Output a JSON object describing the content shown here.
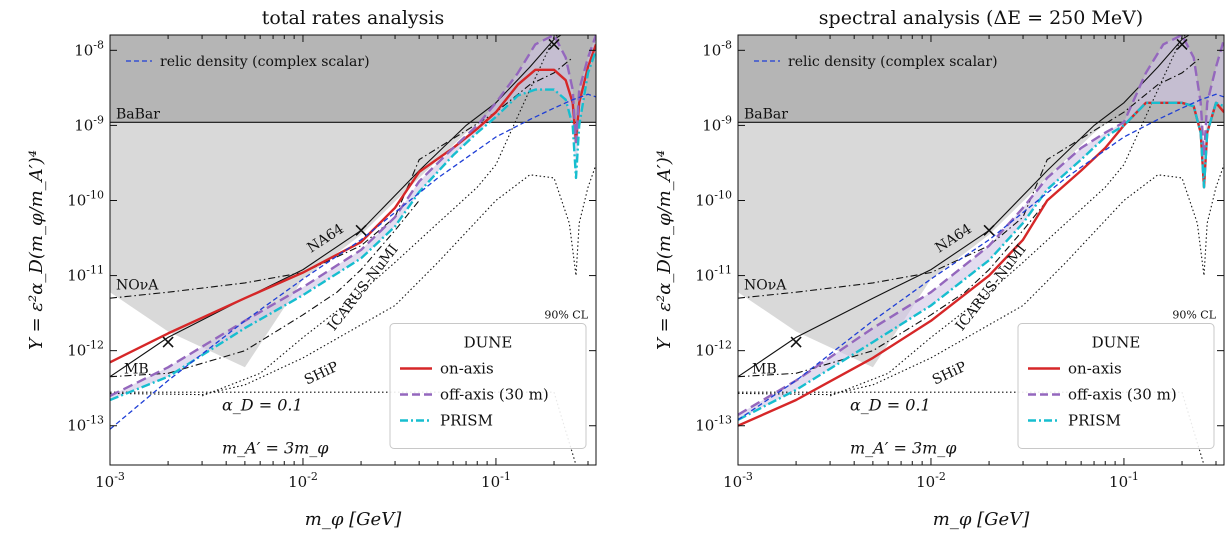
{
  "chart_data": [
    {
      "type": "line",
      "title": "total rates analysis",
      "xlabel": "m_φ [GeV]",
      "ylabel": "Y = ε²α_D(m_φ/m_A′)⁴",
      "xscale": "log",
      "yscale": "log",
      "xlim": [
        0.001,
        0.33
      ],
      "ylim": [
        3e-14,
        1.6e-08
      ],
      "x_ticks": [
        {
          "v": 0.001,
          "m": "10",
          "e": "-3"
        },
        {
          "v": 0.01,
          "m": "10",
          "e": "-2"
        },
        {
          "v": 0.1,
          "m": "10",
          "e": "-1"
        }
      ],
      "y_ticks": [
        {
          "v": 1e-13,
          "m": "10",
          "e": "-13"
        },
        {
          "v": 1e-12,
          "m": "10",
          "e": "-12"
        },
        {
          "v": 1e-11,
          "m": "10",
          "e": "-11"
        },
        {
          "v": 1e-10,
          "m": "10",
          "e": "-10"
        },
        {
          "v": 1e-09,
          "m": "10",
          "e": "-9"
        },
        {
          "v": 1e-08,
          "m": "10",
          "e": "-8"
        }
      ],
      "colors": {
        "excluded": "#b5b5b5",
        "on_axis": "#d62728",
        "off_axis": "#9467bd",
        "prism": "#17becf",
        "relic": "#1f3fd6",
        "band": "#d0c4e4"
      },
      "legend": {
        "position": "lower right",
        "title": "DUNE",
        "entries": [
          {
            "label": "on-axis",
            "style": "solid",
            "color": "#d62728"
          },
          {
            "label": "off-axis (30 m)",
            "style": "dashed",
            "color": "#9467bd"
          },
          {
            "label": "PRISM",
            "style": "dashdot",
            "color": "#17becf"
          }
        ]
      },
      "cl_label": "90% CL",
      "relic_label": "relic density (complex scalar)",
      "params": [
        "α_D = 0.1",
        "m_A′ = 3m_φ"
      ],
      "experiment_labels": [
        "BaBar",
        "NA64",
        "NOνA",
        "MB",
        "SHiP",
        "ICARUS-NuMI"
      ],
      "babar_limit": 1.1e-09,
      "series": [
        {
          "name": "on-axis",
          "x": [
            0.001,
            0.002,
            0.005,
            0.01,
            0.02,
            0.03,
            0.04,
            0.06,
            0.08,
            0.1,
            0.13,
            0.16,
            0.2,
            0.23,
            0.25,
            0.26,
            0.27,
            0.3,
            0.33
          ],
          "y": [
            7e-13,
            1.7e-12,
            5e-12,
            1.1e-11,
            2.8e-11,
            8e-11,
            2.4e-10,
            5e-10,
            9e-10,
            1.5e-09,
            3.5e-09,
            5.5e-09,
            5.5e-09,
            4e-09,
            2e-09,
            6e-10,
            2e-09,
            6e-09,
            1.2e-08
          ]
        },
        {
          "name": "off-axis (30 m)",
          "x": [
            0.001,
            0.002,
            0.005,
            0.01,
            0.02,
            0.03,
            0.04,
            0.06,
            0.08,
            0.1,
            0.13,
            0.16,
            0.2,
            0.23,
            0.25,
            0.26,
            0.27,
            0.3,
            0.33
          ],
          "y": [
            2.5e-13,
            6e-13,
            2.5e-12,
            7e-12,
            2.2e-11,
            6e-11,
            1.8e-10,
            5e-10,
            1e-09,
            2e-09,
            5e-09,
            1.2e-08,
            1.6e-08,
            8e-09,
            3e-09,
            6e-10,
            3e-09,
            8e-09,
            1.6e-08
          ]
        },
        {
          "name": "PRISM",
          "x": [
            0.001,
            0.002,
            0.005,
            0.01,
            0.02,
            0.03,
            0.04,
            0.06,
            0.08,
            0.1,
            0.13,
            0.16,
            0.2,
            0.23,
            0.25,
            0.26,
            0.27,
            0.3,
            0.33
          ],
          "y": [
            2.2e-13,
            4.5e-13,
            2e-12,
            5.5e-12,
            1.7e-11,
            4.5e-11,
            1.3e-10,
            4e-10,
            8e-10,
            1.3e-09,
            2.5e-09,
            3e-09,
            3e-09,
            2.2e-09,
            1e-09,
            2e-10,
            1e-09,
            5e-09,
            1e-08
          ]
        },
        {
          "name": "relic density (complex scalar)",
          "x": [
            0.001,
            0.002,
            0.005,
            0.01,
            0.02,
            0.05,
            0.1,
            0.15,
            0.2,
            0.25,
            0.3,
            0.33
          ],
          "y": [
            9e-14,
            4e-13,
            2.5e-12,
            9e-12,
            3e-11,
            2e-10,
            7e-10,
            1.2e-09,
            1.7e-09,
            2.2e-09,
            2.6e-09,
            2.4e-09
          ]
        }
      ]
    },
    {
      "type": "line",
      "title": "spectral analysis (ΔE = 250 MeV)",
      "xlabel": "m_φ [GeV]",
      "ylabel": "Y = ε²α_D(m_φ/m_A′)⁴",
      "xscale": "log",
      "yscale": "log",
      "xlim": [
        0.001,
        0.33
      ],
      "ylim": [
        3e-14,
        1.6e-08
      ],
      "x_ticks": [
        {
          "v": 0.001,
          "m": "10",
          "e": "-3"
        },
        {
          "v": 0.01,
          "m": "10",
          "e": "-2"
        },
        {
          "v": 0.1,
          "m": "10",
          "e": "-1"
        }
      ],
      "y_ticks": [
        {
          "v": 1e-13,
          "m": "10",
          "e": "-13"
        },
        {
          "v": 1e-12,
          "m": "10",
          "e": "-12"
        },
        {
          "v": 1e-11,
          "m": "10",
          "e": "-11"
        },
        {
          "v": 1e-10,
          "m": "10",
          "e": "-10"
        },
        {
          "v": 1e-09,
          "m": "10",
          "e": "-9"
        },
        {
          "v": 1e-08,
          "m": "10",
          "e": "-8"
        }
      ],
      "colors": {
        "excluded": "#b5b5b5",
        "on_axis": "#d62728",
        "off_axis": "#9467bd",
        "prism": "#17becf",
        "relic": "#1f3fd6",
        "band": "#d0c4e4"
      },
      "legend": {
        "position": "lower right",
        "title": "DUNE",
        "entries": [
          {
            "label": "on-axis",
            "style": "solid",
            "color": "#d62728"
          },
          {
            "label": "off-axis (30 m)",
            "style": "dashed",
            "color": "#9467bd"
          },
          {
            "label": "PRISM",
            "style": "dashdot",
            "color": "#17becf"
          }
        ]
      },
      "cl_label": "90% CL",
      "relic_label": "relic density (complex scalar)",
      "params": [
        "α_D = 0.1",
        "m_A′ = 3m_φ"
      ],
      "experiment_labels": [
        "BaBar",
        "NA64",
        "NOνA",
        "MB",
        "SHiP",
        "ICARUS-NuMI"
      ],
      "babar_limit": 1.1e-09,
      "series": [
        {
          "name": "on-axis",
          "x": [
            0.001,
            0.002,
            0.005,
            0.01,
            0.02,
            0.03,
            0.04,
            0.06,
            0.08,
            0.1,
            0.13,
            0.16,
            0.2,
            0.23,
            0.25,
            0.26,
            0.27,
            0.3,
            0.33
          ],
          "y": [
            1e-13,
            2.2e-13,
            8e-13,
            2.5e-12,
            1e-11,
            3e-11,
            1e-10,
            2.5e-10,
            5e-10,
            1e-09,
            2e-09,
            2e-09,
            2e-09,
            1.8e-09,
            8e-10,
            1.5e-10,
            8e-10,
            2e-09,
            1.5e-09
          ]
        },
        {
          "name": "off-axis (30 m)",
          "x": [
            0.001,
            0.002,
            0.005,
            0.01,
            0.02,
            0.03,
            0.04,
            0.06,
            0.08,
            0.1,
            0.13,
            0.16,
            0.2,
            0.23,
            0.25,
            0.26,
            0.27,
            0.3,
            0.33
          ],
          "y": [
            1.4e-13,
            4e-13,
            2e-12,
            6e-12,
            2.5e-11,
            8e-11,
            2e-10,
            5e-10,
            8e-10,
            1.1e-09,
            5e-09,
            1.2e-08,
            1.6e-08,
            8e-09,
            2e-09,
            4e-10,
            2e-09,
            6e-09,
            1.4e-08
          ]
        },
        {
          "name": "PRISM",
          "x": [
            0.001,
            0.002,
            0.005,
            0.01,
            0.02,
            0.03,
            0.04,
            0.06,
            0.08,
            0.1,
            0.13,
            0.16,
            0.2,
            0.23,
            0.25,
            0.26,
            0.27,
            0.3,
            0.33
          ],
          "y": [
            1.2e-13,
            3e-13,
            1.3e-12,
            4e-12,
            1.6e-11,
            5e-11,
            1.4e-10,
            3.5e-10,
            7e-10,
            1e-09,
            2e-09,
            2e-09,
            2e-09,
            1.8e-09,
            8e-10,
            1.5e-10,
            8e-10,
            2e-09,
            1.8e-09
          ]
        },
        {
          "name": "relic density (complex scalar)",
          "x": [
            0.001,
            0.002,
            0.005,
            0.01,
            0.02,
            0.05,
            0.1,
            0.15,
            0.2,
            0.25,
            0.3,
            0.33
          ],
          "y": [
            1.2e-13,
            4e-13,
            2.5e-12,
            9e-12,
            3e-11,
            2e-10,
            7e-10,
            1.2e-09,
            1.7e-09,
            2.2e-09,
            2.6e-09,
            2.4e-09
          ]
        }
      ]
    }
  ]
}
